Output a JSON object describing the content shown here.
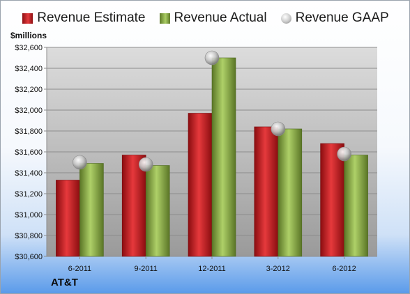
{
  "chart_data": {
    "type": "bar",
    "ylabel": "$millions",
    "company": "AT&T",
    "categories": [
      "6-2011",
      "9-2011",
      "12-2011",
      "3-2012",
      "6-2012"
    ],
    "series": [
      {
        "name": "Revenue Estimate",
        "kind": "bar",
        "color": "#c8181d",
        "values": [
          31330,
          31570,
          31970,
          31840,
          31680
        ]
      },
      {
        "name": "Revenue Actual",
        "kind": "bar",
        "color": "#8db053",
        "values": [
          31490,
          31470,
          32500,
          31820,
          31570
        ]
      },
      {
        "name": "Revenue GAAP",
        "kind": "marker",
        "color": "#c0c0c0",
        "values": [
          31500,
          31480,
          32500,
          31820,
          31580
        ]
      }
    ],
    "ylim": [
      30600,
      32600
    ],
    "yticks": [
      30600,
      30800,
      31000,
      31200,
      31400,
      31600,
      31800,
      32000,
      32200,
      32400,
      32600
    ],
    "ytick_labels": [
      "$30,600",
      "$30,800",
      "$31,000",
      "$31,200",
      "$31,400",
      "$31,600",
      "$31,800",
      "$32,000",
      "$32,200",
      "$32,400",
      "$32,600"
    ],
    "grid": true,
    "legend_position": "top"
  }
}
